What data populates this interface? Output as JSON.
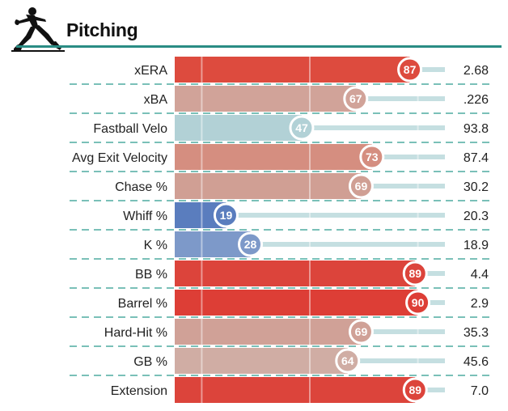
{
  "header": {
    "title": "Pitching",
    "icon": "pitcher-silhouette-icon",
    "rule_color": "#2a8c84"
  },
  "colors": {
    "track": "#c5dfe1",
    "separator": "#2a9a8e",
    "hot": "#de3a34",
    "cold": "#4a6fb5",
    "neutral": "#b0cdd2"
  },
  "chart_data": {
    "type": "bar",
    "orientation": "horizontal",
    "scale": "percentile",
    "xlim": [
      0,
      100
    ],
    "grid": true,
    "gridlines_at": [
      10,
      50,
      90
    ],
    "categories": [
      "xERA",
      "xBA",
      "Fastball Velo",
      "Avg Exit Velocity",
      "Chase %",
      "Whiff %",
      "K %",
      "BB %",
      "Barrel %",
      "Hard-Hit %",
      "GB %",
      "Extension"
    ],
    "percentiles": [
      87,
      67,
      47,
      73,
      69,
      19,
      28,
      89,
      90,
      69,
      64,
      89
    ],
    "stat_values": [
      "2.68",
      ".226",
      "93.8",
      "87.4",
      "30.2",
      "20.3",
      "18.9",
      "4.4",
      "2.9",
      "35.3",
      "45.6",
      "7.0"
    ],
    "bar_colors": [
      "#dd4b3e",
      "#d1a399",
      "#b2d1d6",
      "#d58e80",
      "#d09f94",
      "#5a7dbe",
      "#7d99c9",
      "#dc443b",
      "#dd3e36",
      "#d0a197",
      "#d0ada4",
      "#dc443b"
    ]
  }
}
